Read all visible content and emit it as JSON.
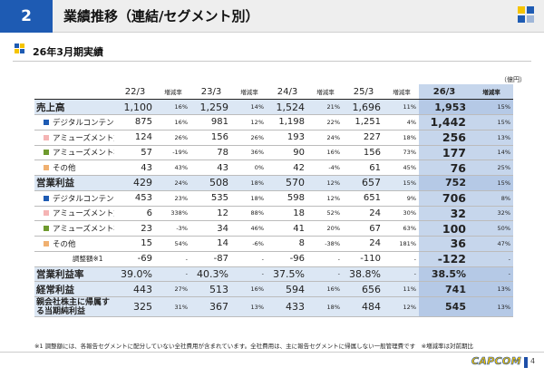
{
  "header": {
    "page_number": "2",
    "title": "業績推移（連結/セグメント別）"
  },
  "subtitle": "26年3月期実績",
  "unit": "（億円）",
  "columns": [
    {
      "period": "22/3",
      "rate": "増減率"
    },
    {
      "period": "23/3",
      "rate": "増減率"
    },
    {
      "period": "24/3",
      "rate": "増減率"
    },
    {
      "period": "25/3",
      "rate": "増減率"
    },
    {
      "period": "26/3",
      "rate": "増減率"
    }
  ],
  "rows": [
    {
      "label": "売上高",
      "kind": "main",
      "cells": [
        "1,100",
        "16%",
        "1,259",
        "14%",
        "1,524",
        "21%",
        "1,696",
        "11%",
        "1,953",
        "15%"
      ]
    },
    {
      "label": "デジタルコンテンツ",
      "kind": "seg",
      "marker": "#1e5bb3",
      "cells": [
        "875",
        "16%",
        "981",
        "12%",
        "1,198",
        "22%",
        "1,251",
        "4%",
        "1,442",
        "15%"
      ]
    },
    {
      "label": "アミューズメント施設",
      "kind": "seg",
      "marker": "#f5b4b4",
      "cells": [
        "124",
        "26%",
        "156",
        "26%",
        "193",
        "24%",
        "227",
        "18%",
        "256",
        "13%"
      ]
    },
    {
      "label": "アミューズメント機器",
      "kind": "seg",
      "marker": "#6e9a2e",
      "cells": [
        "57",
        "-19%",
        "78",
        "36%",
        "90",
        "16%",
        "156",
        "73%",
        "177",
        "14%"
      ]
    },
    {
      "label": "その他",
      "kind": "seg",
      "marker": "#f0b070",
      "cells": [
        "43",
        "43%",
        "43",
        "0%",
        "42",
        "-4%",
        "61",
        "45%",
        "76",
        "25%"
      ]
    },
    {
      "label": "営業利益",
      "kind": "main",
      "cells": [
        "429",
        "24%",
        "508",
        "18%",
        "570",
        "12%",
        "657",
        "15%",
        "752",
        "15%"
      ]
    },
    {
      "label": "デジタルコンテンツ",
      "kind": "seg",
      "marker": "#1e5bb3",
      "cells": [
        "453",
        "23%",
        "535",
        "18%",
        "598",
        "12%",
        "651",
        "9%",
        "706",
        "8%"
      ]
    },
    {
      "label": "アミューズメント施設",
      "kind": "seg",
      "marker": "#f5b4b4",
      "cells": [
        "6",
        "338%",
        "12",
        "88%",
        "18",
        "52%",
        "24",
        "30%",
        "32",
        "32%"
      ]
    },
    {
      "label": "アミューズメント機器",
      "kind": "seg",
      "marker": "#6e9a2e",
      "cells": [
        "23",
        "-3%",
        "34",
        "46%",
        "41",
        "20%",
        "67",
        "63%",
        "100",
        "50%"
      ]
    },
    {
      "label": "その他",
      "kind": "seg",
      "marker": "#f0b070",
      "cells": [
        "15",
        "54%",
        "14",
        "-6%",
        "8",
        "-38%",
        "24",
        "181%",
        "36",
        "47%"
      ]
    },
    {
      "label": "調整額※1",
      "kind": "adj",
      "cells": [
        "-69",
        "-",
        "-87",
        "-",
        "-96",
        "-",
        "-110",
        "-",
        "-122",
        "-"
      ]
    },
    {
      "label": "営業利益率",
      "kind": "main",
      "cells": [
        "39.0%",
        "-",
        "40.3%",
        "-",
        "37.5%",
        "-",
        "38.8%",
        "-",
        "38.5%",
        "-"
      ]
    },
    {
      "label": "経常利益",
      "kind": "main",
      "cells": [
        "443",
        "27%",
        "513",
        "16%",
        "594",
        "16%",
        "656",
        "11%",
        "741",
        "13%"
      ]
    },
    {
      "label": "親会社株主に帰属する当期純利益",
      "kind": "main two",
      "cells": [
        "325",
        "31%",
        "367",
        "13%",
        "433",
        "18%",
        "484",
        "12%",
        "545",
        "13%"
      ]
    }
  ],
  "note": "※1 調整額には、各報告セグメントに配分していない全社費用が含まれています。全社費用は、主に報告セグメントに帰属しない一般管理費です　※増減率は対前期比",
  "brand": "CAPCOM",
  "page": "4"
}
